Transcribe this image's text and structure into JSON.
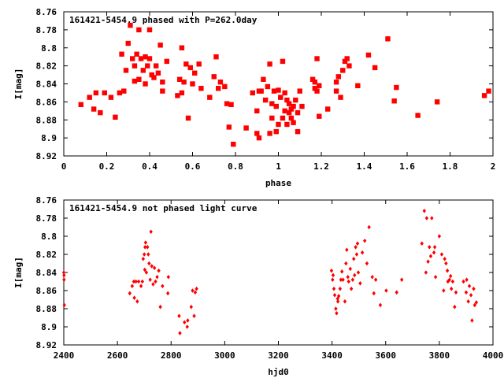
{
  "chart_data": [
    {
      "type": "scatter",
      "title": "161421-5454.9 phased with P=262.0day",
      "xlabel": "phase",
      "ylabel": "I[mag]",
      "xlim": [
        0,
        2
      ],
      "ylim": [
        8.92,
        8.76
      ],
      "y_inverted": true,
      "x_ticks": [
        "0",
        "0.2",
        "0.4",
        "0.6",
        "0.8",
        "1",
        "1.2",
        "1.4",
        "1.6",
        "1.8",
        "2"
      ],
      "y_ticks": [
        "8.76",
        "8.78",
        "8.8",
        "8.82",
        "8.84",
        "8.86",
        "8.88",
        "8.9",
        "8.92"
      ],
      "grid": false,
      "marker_color": "#ff0000",
      "series": [
        {
          "points": [
            [
              0.08,
              8.863
            ],
            [
              0.12,
              8.855
            ],
            [
              0.14,
              8.868
            ],
            [
              0.15,
              8.85
            ],
            [
              0.17,
              8.872
            ],
            [
              0.19,
              8.85
            ],
            [
              0.22,
              8.855
            ],
            [
              0.24,
              8.877
            ],
            [
              0.26,
              8.85
            ],
            [
              0.27,
              8.807
            ],
            [
              0.28,
              8.848
            ],
            [
              0.29,
              8.825
            ],
            [
              0.3,
              8.795
            ],
            [
              0.31,
              8.775
            ],
            [
              0.32,
              8.812
            ],
            [
              0.33,
              8.82
            ],
            [
              0.33,
              8.837
            ],
            [
              0.34,
              8.807
            ],
            [
              0.35,
              8.78
            ],
            [
              0.35,
              8.835
            ],
            [
              0.36,
              8.812
            ],
            [
              0.37,
              8.825
            ],
            [
              0.38,
              8.81
            ],
            [
              0.38,
              8.84
            ],
            [
              0.39,
              8.82
            ],
            [
              0.4,
              8.78
            ],
            [
              0.4,
              8.812
            ],
            [
              0.41,
              8.83
            ],
            [
              0.42,
              8.833
            ],
            [
              0.43,
              8.82
            ],
            [
              0.44,
              8.828
            ],
            [
              0.45,
              8.797
            ],
            [
              0.46,
              8.838
            ],
            [
              0.46,
              8.848
            ],
            [
              0.48,
              8.815
            ],
            [
              0.53,
              8.853
            ],
            [
              0.54,
              8.835
            ],
            [
              0.55,
              8.8
            ],
            [
              0.55,
              8.85
            ],
            [
              0.56,
              8.838
            ],
            [
              0.57,
              8.818
            ],
            [
              0.58,
              8.878
            ],
            [
              0.59,
              8.822
            ],
            [
              0.6,
              8.84
            ],
            [
              0.61,
              8.828
            ],
            [
              0.63,
              8.818
            ],
            [
              0.64,
              8.845
            ],
            [
              0.68,
              8.855
            ],
            [
              0.7,
              8.832
            ],
            [
              0.71,
              8.81
            ],
            [
              0.72,
              8.845
            ],
            [
              0.73,
              8.838
            ],
            [
              0.75,
              8.843
            ],
            [
              0.76,
              8.862
            ],
            [
              0.77,
              8.888
            ],
            [
              0.78,
              8.863
            ],
            [
              0.79,
              8.907
            ],
            [
              0.85,
              8.889
            ],
            [
              0.88,
              8.85
            ],
            [
              0.9,
              8.87
            ],
            [
              0.9,
              8.895
            ],
            [
              0.91,
              8.848
            ],
            [
              0.91,
              8.9
            ],
            [
              0.92,
              8.848
            ],
            [
              0.93,
              8.835
            ],
            [
              0.94,
              8.858
            ],
            [
              0.95,
              8.843
            ],
            [
              0.96,
              8.895
            ],
            [
              0.96,
              8.818
            ],
            [
              0.97,
              8.862
            ],
            [
              0.97,
              8.878
            ],
            [
              0.98,
              8.848
            ],
            [
              0.99,
              8.865
            ],
            [
              0.99,
              8.893
            ],
            [
              1.0,
              8.885
            ],
            [
              1.0,
              8.847
            ],
            [
              1.01,
              8.855
            ],
            [
              1.02,
              8.878
            ],
            [
              1.02,
              8.815
            ],
            [
              1.03,
              8.85
            ],
            [
              1.03,
              8.87
            ],
            [
              1.04,
              8.858
            ],
            [
              1.04,
              8.885
            ],
            [
              1.05,
              8.862
            ],
            [
              1.05,
              8.872
            ],
            [
              1.06,
              8.878
            ],
            [
              1.06,
              8.868
            ],
            [
              1.07,
              8.883
            ],
            [
              1.07,
              8.865
            ],
            [
              1.08,
              8.858
            ],
            [
              1.09,
              8.872
            ],
            [
              1.09,
              8.893
            ],
            [
              1.1,
              8.848
            ],
            [
              1.11,
              8.865
            ],
            [
              1.16,
              8.835
            ],
            [
              1.17,
              8.838
            ],
            [
              1.17,
              8.845
            ],
            [
              1.18,
              8.812
            ],
            [
              1.18,
              8.848
            ],
            [
              1.19,
              8.842
            ],
            [
              1.19,
              8.876
            ],
            [
              1.23,
              8.868
            ],
            [
              1.27,
              8.838
            ],
            [
              1.27,
              8.848
            ],
            [
              1.28,
              8.832
            ],
            [
              1.29,
              8.855
            ],
            [
              1.3,
              8.825
            ],
            [
              1.31,
              8.815
            ],
            [
              1.32,
              8.812
            ],
            [
              1.33,
              8.82
            ],
            [
              1.37,
              8.842
            ],
            [
              1.42,
              8.808
            ],
            [
              1.45,
              8.822
            ],
            [
              1.51,
              8.79
            ],
            [
              1.54,
              8.859
            ],
            [
              1.55,
              8.844
            ],
            [
              1.65,
              8.875
            ],
            [
              1.74,
              8.86
            ],
            [
              1.96,
              8.853
            ],
            [
              1.98,
              8.848
            ]
          ]
        }
      ]
    },
    {
      "type": "scatter",
      "title": "161421-5454.9 not phased light curve",
      "xlabel": "hjd0",
      "ylabel": "I[mag]",
      "xlim": [
        2400,
        4000
      ],
      "ylim": [
        8.92,
        8.76
      ],
      "y_inverted": true,
      "x_ticks": [
        "2400",
        "2600",
        "2800",
        "3000",
        "3200",
        "3400",
        "3600",
        "3800",
        "4000"
      ],
      "y_ticks": [
        "8.76",
        "8.78",
        "8.8",
        "8.82",
        "8.84",
        "8.86",
        "8.88",
        "8.9",
        "8.92"
      ],
      "grid": false,
      "marker_color": "#ff0000",
      "series": [
        {
          "points": [
            [
              2400,
              8.84
            ],
            [
              2401,
              8.843
            ],
            [
              2401,
              8.848
            ],
            [
              2402,
              8.876
            ],
            [
              2646,
              8.863
            ],
            [
              2655,
              8.855
            ],
            [
              2661,
              8.85
            ],
            [
              2663,
              8.868
            ],
            [
              2669,
              8.85
            ],
            [
              2674,
              8.872
            ],
            [
              2679,
              8.85
            ],
            [
              2688,
              8.855
            ],
            [
              2693,
              8.85
            ],
            [
              2696,
              8.825
            ],
            [
              2700,
              8.82
            ],
            [
              2702,
              8.837
            ],
            [
              2703,
              8.812
            ],
            [
              2705,
              8.807
            ],
            [
              2708,
              8.84
            ],
            [
              2712,
              8.812
            ],
            [
              2715,
              8.82
            ],
            [
              2718,
              8.83
            ],
            [
              2722,
              8.848
            ],
            [
              2725,
              8.795
            ],
            [
              2728,
              8.833
            ],
            [
              2733,
              8.853
            ],
            [
              2738,
              8.835
            ],
            [
              2742,
              8.85
            ],
            [
              2748,
              8.845
            ],
            [
              2754,
              8.838
            ],
            [
              2760,
              8.878
            ],
            [
              2768,
              8.855
            ],
            [
              2788,
              8.863
            ],
            [
              2790,
              8.845
            ],
            [
              2830,
              8.888
            ],
            [
              2833,
              8.907
            ],
            [
              2850,
              8.895
            ],
            [
              2860,
              8.9
            ],
            [
              2862,
              8.893
            ],
            [
              2875,
              8.878
            ],
            [
              2880,
              8.86
            ],
            [
              2886,
              8.888
            ],
            [
              2890,
              8.862
            ],
            [
              2895,
              8.858
            ],
            [
              3398,
              8.838
            ],
            [
              3402,
              8.848
            ],
            [
              3404,
              8.843
            ],
            [
              3407,
              8.858
            ],
            [
              3410,
              8.865
            ],
            [
              3414,
              8.88
            ],
            [
              3417,
              8.885
            ],
            [
              3421,
              8.869
            ],
            [
              3422,
              8.872
            ],
            [
              3425,
              8.866
            ],
            [
              3430,
              8.858
            ],
            [
              3433,
              8.848
            ],
            [
              3437,
              8.839
            ],
            [
              3441,
              8.848
            ],
            [
              3448,
              8.872
            ],
            [
              3452,
              8.83
            ],
            [
              3455,
              8.815
            ],
            [
              3459,
              8.845
            ],
            [
              3462,
              8.85
            ],
            [
              3468,
              8.836
            ],
            [
              3472,
              8.858
            ],
            [
              3477,
              8.848
            ],
            [
              3481,
              8.825
            ],
            [
              3484,
              8.843
            ],
            [
              3488,
              8.812
            ],
            [
              3492,
              8.82
            ],
            [
              3495,
              8.808
            ],
            [
              3498,
              8.84
            ],
            [
              3505,
              8.852
            ],
            [
              3513,
              8.818
            ],
            [
              3522,
              8.805
            ],
            [
              3530,
              8.83
            ],
            [
              3538,
              8.79
            ],
            [
              3550,
              8.845
            ],
            [
              3556,
              8.863
            ],
            [
              3563,
              8.848
            ],
            [
              3580,
              8.876
            ],
            [
              3602,
              8.86
            ],
            [
              3641,
              8.862
            ],
            [
              3660,
              8.848
            ],
            [
              3735,
              8.808
            ],
            [
              3744,
              8.772
            ],
            [
              3750,
              8.84
            ],
            [
              3753,
              8.78
            ],
            [
              3758,
              8.828
            ],
            [
              3763,
              8.812
            ],
            [
              3768,
              8.822
            ],
            [
              3772,
              8.78
            ],
            [
              3780,
              8.818
            ],
            [
              3783,
              8.812
            ],
            [
              3786,
              8.845
            ],
            [
              3800,
              8.8
            ],
            [
              3809,
              8.82
            ],
            [
              3816,
              8.86
            ],
            [
              3820,
              8.825
            ],
            [
              3825,
              8.83
            ],
            [
              3830,
              8.838
            ],
            [
              3832,
              8.85
            ],
            [
              3838,
              8.848
            ],
            [
              3842,
              8.844
            ],
            [
              3845,
              8.858
            ],
            [
              3850,
              8.85
            ],
            [
              3857,
              8.878
            ],
            [
              3862,
              8.862
            ],
            [
              3890,
              8.85
            ],
            [
              3900,
              8.862
            ],
            [
              3902,
              8.848
            ],
            [
              3908,
              8.872
            ],
            [
              3912,
              8.855
            ],
            [
              3918,
              8.865
            ],
            [
              3922,
              8.893
            ],
            [
              3928,
              8.858
            ],
            [
              3932,
              8.876
            ],
            [
              3938,
              8.873
            ]
          ]
        }
      ]
    }
  ]
}
